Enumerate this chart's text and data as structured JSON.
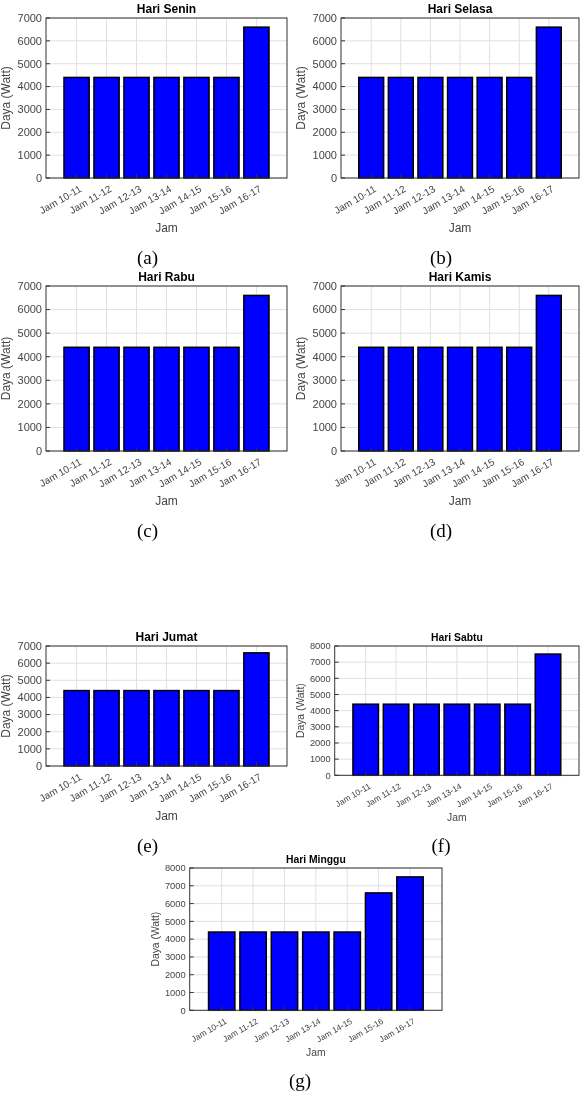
{
  "chart_data": [
    {
      "type": "bar",
      "title": "Hari Senin",
      "xlabel": "Jam",
      "ylabel": "Daya (Watt)",
      "annotations": [
        "(a)"
      ],
      "categories": [
        "Jam 10-11",
        "Jam 11-12",
        "Jam 12-13",
        "Jam 13-14",
        "Jam 14-15",
        "Jam 15-16",
        "Jam 16-17"
      ],
      "values": [
        4400,
        4400,
        4400,
        4400,
        4400,
        4400,
        6600
      ],
      "color": "#0000ff",
      "ylim": [
        0,
        7000
      ],
      "yticks": [
        0,
        1000,
        2000,
        3000,
        4000,
        5000,
        6000,
        7000
      ],
      "grid": true
    },
    {
      "type": "bar",
      "title": "Hari Selasa",
      "xlabel": "Jam",
      "ylabel": "Daya (Watt)",
      "annotations": [
        "(b)"
      ],
      "categories": [
        "Jam 10-11",
        "Jam 11-12",
        "Jam 12-13",
        "Jam 13-14",
        "Jam 14-15",
        "Jam 15-16",
        "Jam 16-17"
      ],
      "values": [
        4400,
        4400,
        4400,
        4400,
        4400,
        4400,
        6600
      ],
      "color": "#0000ff",
      "ylim": [
        0,
        7000
      ],
      "yticks": [
        0,
        1000,
        2000,
        3000,
        4000,
        5000,
        6000,
        7000
      ],
      "grid": true
    },
    {
      "type": "bar",
      "title": "Hari Rabu",
      "xlabel": "Jam",
      "ylabel": "Daya (Watt)",
      "annotations": [
        "(c)"
      ],
      "categories": [
        "Jam 10-11",
        "Jam 11-12",
        "Jam 12-13",
        "Jam 13-14",
        "Jam 14-15",
        "Jam 15-16",
        "Jam 16-17"
      ],
      "values": [
        4400,
        4400,
        4400,
        4400,
        4400,
        4400,
        6600
      ],
      "color": "#0000ff",
      "ylim": [
        0,
        7000
      ],
      "yticks": [
        0,
        1000,
        2000,
        3000,
        4000,
        5000,
        6000,
        7000
      ],
      "grid": true
    },
    {
      "type": "bar",
      "title": "Hari Kamis",
      "xlabel": "Jam",
      "ylabel": "Daya (Watt)",
      "annotations": [
        "(d)"
      ],
      "categories": [
        "Jam 10-11",
        "Jam 11-12",
        "Jam 12-13",
        "Jam 13-14",
        "Jam 14-15",
        "Jam 15-16",
        "Jam 16-17"
      ],
      "values": [
        4400,
        4400,
        4400,
        4400,
        4400,
        4400,
        6600
      ],
      "color": "#0000ff",
      "ylim": [
        0,
        7000
      ],
      "yticks": [
        0,
        1000,
        2000,
        3000,
        4000,
        5000,
        6000,
        7000
      ],
      "grid": true
    },
    {
      "type": "bar",
      "title": "Hari Jumat",
      "xlabel": "Jam",
      "ylabel": "Daya (Watt)",
      "annotations": [
        "(e)"
      ],
      "categories": [
        "Jam 10-11",
        "Jam 11-12",
        "Jam 12-13",
        "Jam 13-14",
        "Jam 14-15",
        "Jam 15-16",
        "Jam 16-17"
      ],
      "values": [
        4400,
        4400,
        4400,
        4400,
        4400,
        4400,
        6600
      ],
      "color": "#0000ff",
      "ylim": [
        0,
        7000
      ],
      "yticks": [
        0,
        1000,
        2000,
        3000,
        4000,
        5000,
        6000,
        7000
      ],
      "grid": true
    },
    {
      "type": "bar",
      "title": "Hari Sabtu",
      "xlabel": "Jam",
      "ylabel": "Daya (Watt)",
      "annotations": [
        "(f)"
      ],
      "categories": [
        "Jam 10-11",
        "Jam 11-12",
        "Jam 12-13",
        "Jam 13-14",
        "Jam 14-15",
        "Jam 15-16",
        "Jam 16-17"
      ],
      "values": [
        4400,
        4400,
        4400,
        4400,
        4400,
        4400,
        7500
      ],
      "color": "#0000ff",
      "ylim": [
        0,
        8000
      ],
      "yticks": [
        0,
        1000,
        2000,
        3000,
        4000,
        5000,
        6000,
        7000,
        8000
      ],
      "grid": true
    },
    {
      "type": "bar",
      "title": "Hari Minggu",
      "xlabel": "Jam",
      "ylabel": "Daya (Watt)",
      "annotations": [
        "(g)"
      ],
      "categories": [
        "Jam 10-11",
        "Jam 11-12",
        "Jam 12-13",
        "Jam 13-14",
        "Jam 14-15",
        "Jam 15-16",
        "Jam 16-17"
      ],
      "values": [
        4400,
        4400,
        4400,
        4400,
        4400,
        6600,
        7500
      ],
      "color": "#0000ff",
      "ylim": [
        0,
        8000
      ],
      "yticks": [
        0,
        1000,
        2000,
        3000,
        4000,
        5000,
        6000,
        7000,
        8000
      ],
      "grid": true
    }
  ]
}
